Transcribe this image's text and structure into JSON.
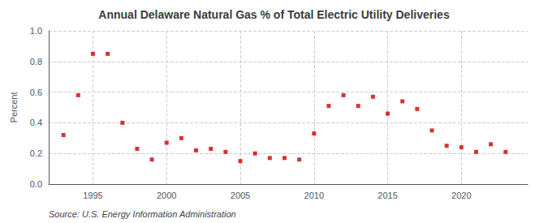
{
  "chart_data": {
    "type": "scatter",
    "title": "Annual Delaware Natural Gas % of Total Electric Utility Deliveries",
    "ylabel": "Percent",
    "annotations": [
      "Source: U.S. Energy Information Administration"
    ],
    "x": [
      1993,
      1994,
      1995,
      1996,
      1997,
      1998,
      1999,
      2000,
      2001,
      2002,
      2003,
      2004,
      2005,
      2006,
      2007,
      2008,
      2009,
      2010,
      2011,
      2012,
      2013,
      2014,
      2015,
      2016,
      2017,
      2018,
      2019,
      2020,
      2021,
      2022,
      2023
    ],
    "values": [
      0.32,
      0.58,
      0.85,
      0.85,
      0.4,
      0.23,
      0.16,
      0.27,
      0.3,
      0.22,
      0.23,
      0.21,
      0.15,
      0.2,
      0.17,
      0.17,
      0.16,
      0.33,
      0.51,
      0.58,
      0.51,
      0.57,
      0.46,
      0.54,
      0.49,
      0.35,
      0.25,
      0.24,
      0.21,
      0.26,
      0.21
    ],
    "color": "#cc0000",
    "marker": "square",
    "xlim": [
      1992.0,
      2024.5
    ],
    "xticks": [
      1995,
      2000,
      2005,
      2010,
      2015,
      2020
    ],
    "ylim": [
      0.0,
      1.0
    ],
    "yticks": [
      {
        "value": 0.0,
        "label": "0.0"
      },
      0.2,
      0.4,
      0.6,
      0.8,
      {
        "value": 1.0,
        "label": "1.0"
      }
    ],
    "grid": true
  }
}
